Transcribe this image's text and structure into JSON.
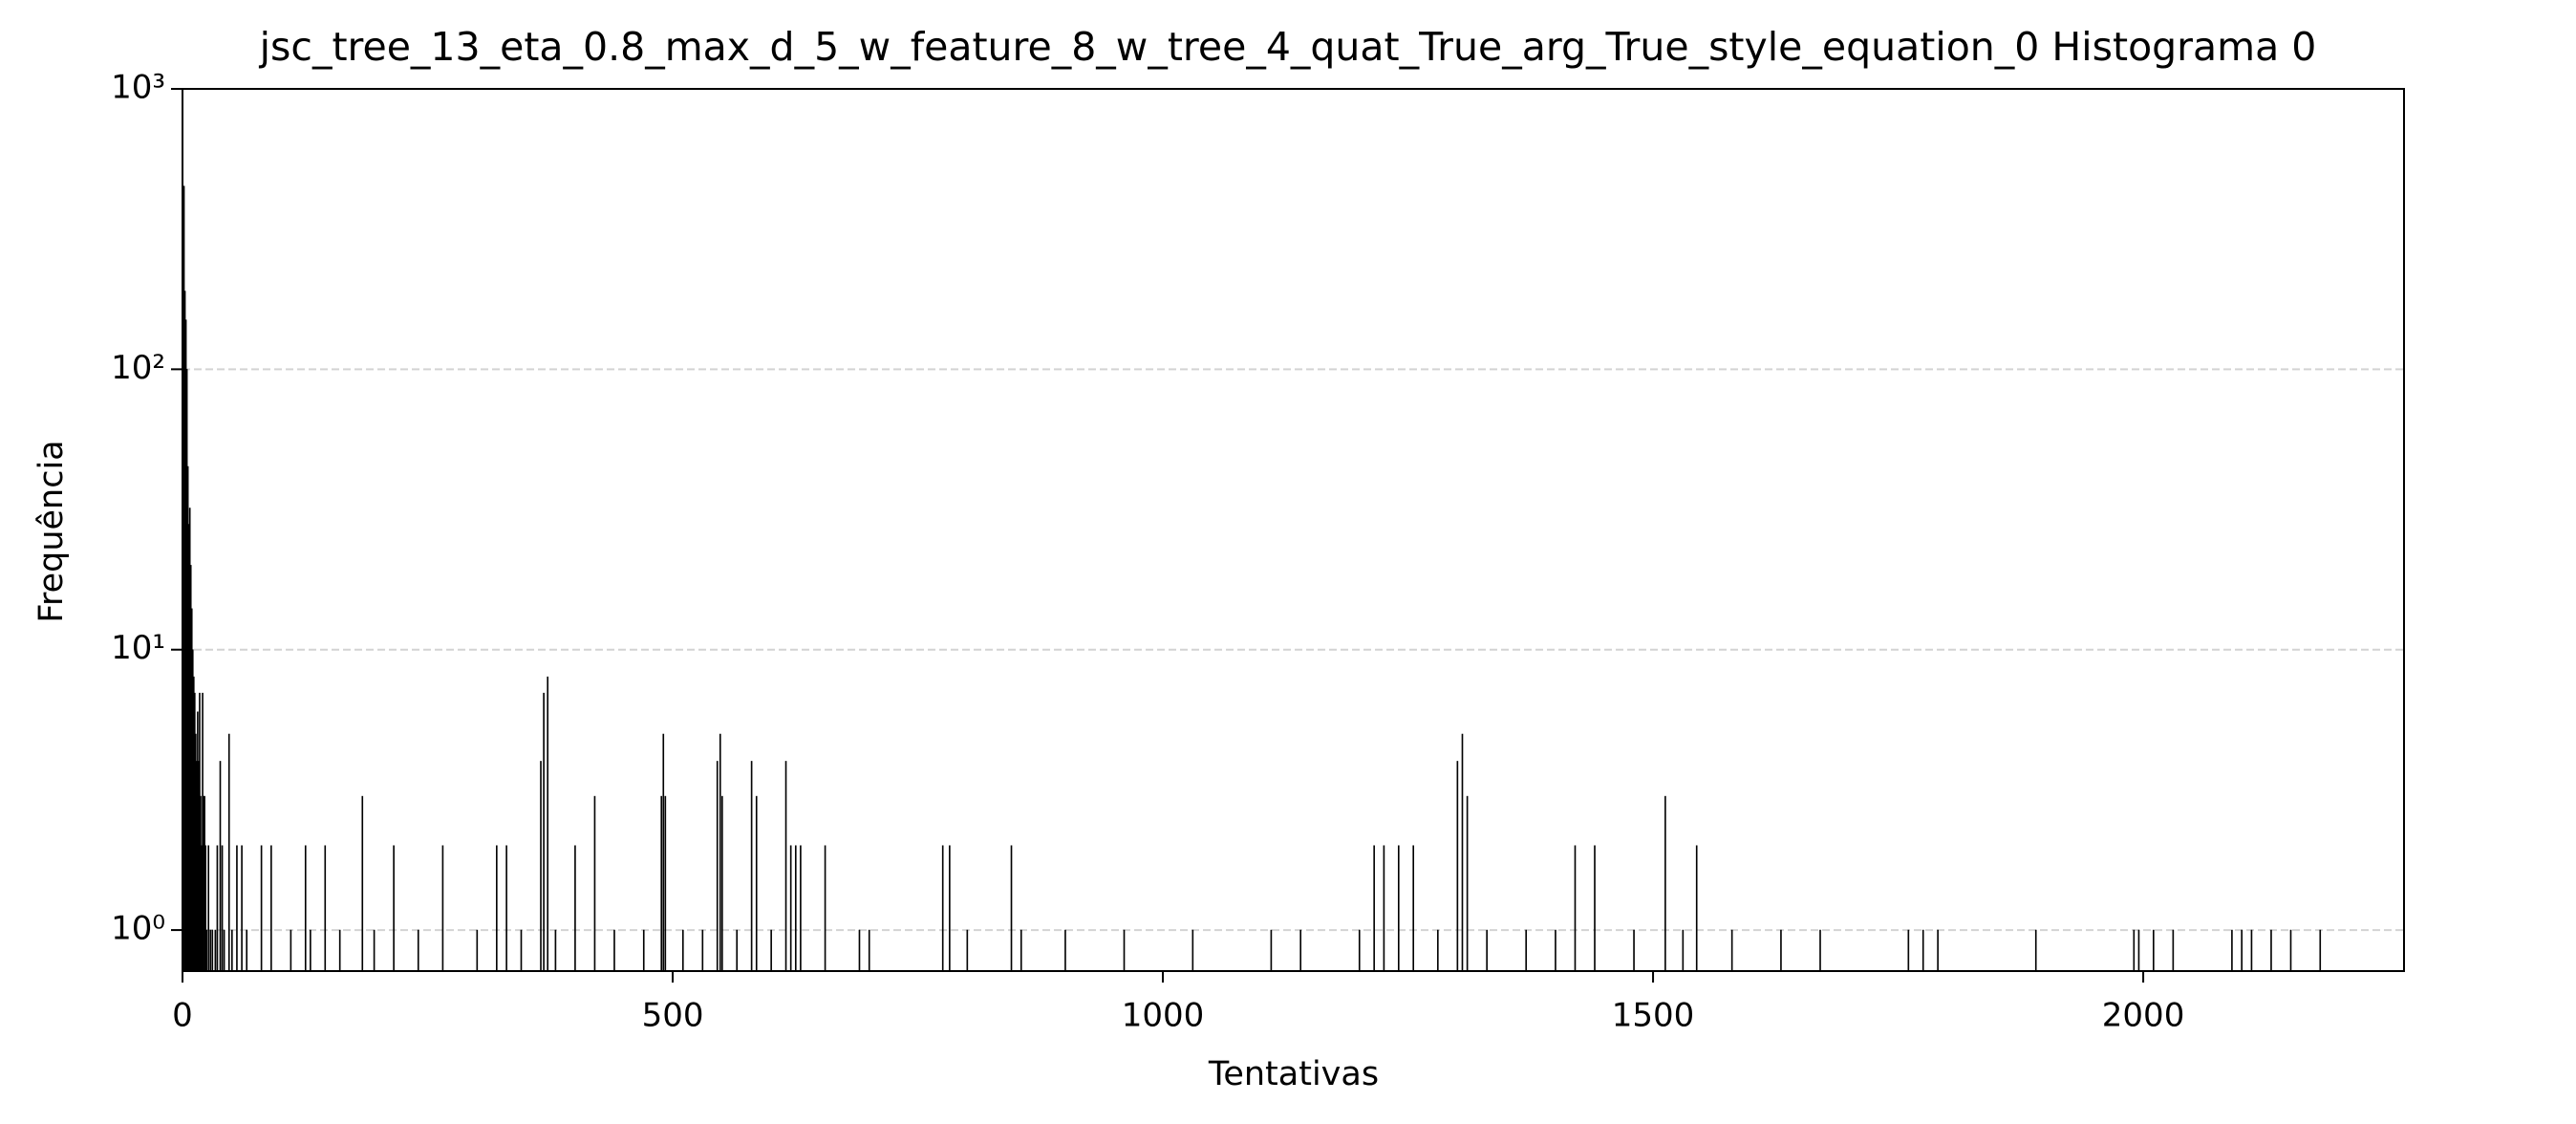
{
  "chart_data": {
    "type": "histogram",
    "title": "jsc_tree_13_eta_0.8_max_d_5_w_feature_8_w_tree_4_quat_True_arg_True_style_equation_0 Histograma 0",
    "xlabel": "Tentativas",
    "ylabel": "Frequência",
    "color": "#000000",
    "log_y": true,
    "grid": "y",
    "xlim": [
      0,
      2266
    ],
    "ylim": [
      0.714,
      1000
    ],
    "xticks": [
      0,
      500,
      1000,
      1500,
      2000
    ],
    "yticks": [
      {
        "value": 1,
        "label": "10⁰"
      },
      {
        "value": 10,
        "label": "10¹"
      },
      {
        "value": 100,
        "label": "10²"
      },
      {
        "value": 1000,
        "label": "10³"
      }
    ],
    "bins": [
      1,
      2,
      3,
      4,
      5,
      6,
      7,
      8,
      9,
      10,
      11,
      12,
      13,
      14,
      15,
      16,
      17,
      18,
      19,
      20,
      21,
      22,
      23,
      24,
      25,
      26,
      27,
      28,
      29,
      30,
      31,
      33,
      34,
      35,
      36,
      38,
      39,
      40,
      41,
      42,
      43,
      47,
      48,
      50,
      51,
      55,
      56,
      60,
      61,
      65,
      66,
      80,
      81,
      90,
      91,
      110,
      111,
      125,
      126,
      130,
      131,
      145,
      146,
      160,
      161,
      183,
      184,
      195,
      196,
      215,
      216,
      240,
      241,
      265,
      266,
      300,
      301,
      320,
      321,
      330,
      331,
      345,
      346,
      365,
      366,
      368,
      369,
      372,
      373,
      380,
      381,
      400,
      401,
      420,
      421,
      440,
      441,
      470,
      471,
      488,
      489,
      490,
      491,
      492,
      493,
      510,
      511,
      530,
      531,
      545,
      546,
      548,
      549,
      550,
      551,
      565,
      566,
      580,
      581,
      585,
      586,
      600,
      601,
      615,
      616,
      620,
      621,
      625,
      626,
      630,
      631,
      655,
      656,
      690,
      691,
      700,
      701,
      775,
      776,
      782,
      783,
      800,
      801,
      845,
      846,
      855,
      856,
      900,
      901,
      960,
      961,
      1030,
      1031,
      1110,
      1111,
      1140,
      1141,
      1200,
      1201,
      1215,
      1216,
      1225,
      1226,
      1240,
      1241,
      1255,
      1256,
      1280,
      1281,
      1300,
      1301,
      1305,
      1306,
      1310,
      1311,
      1330,
      1331,
      1370,
      1371,
      1400,
      1401,
      1420,
      1421,
      1440,
      1441,
      1480,
      1481,
      1512,
      1513,
      1530,
      1531,
      1544,
      1545,
      1580,
      1581,
      1630,
      1631,
      1670,
      1671,
      1760,
      1761,
      1775,
      1776,
      1790,
      1791,
      1890,
      1891,
      1990,
      1991,
      1995,
      1996,
      2010,
      2011,
      2030,
      2031,
      2090,
      2091,
      2100,
      2101,
      2110,
      2111,
      2130,
      2131,
      2150,
      2151,
      2180,
      2181
    ],
    "counts": [
      450,
      190,
      150,
      100,
      45,
      28,
      32,
      20,
      14,
      10,
      8,
      7,
      5,
      4,
      6,
      4,
      7,
      3,
      2,
      7,
      3,
      3,
      2,
      1,
      null,
      2,
      null,
      1,
      null,
      1,
      null,
      1,
      null,
      2,
      null,
      4,
      null,
      2,
      null,
      1,
      null,
      5,
      null,
      1,
      null,
      2,
      null,
      2,
      null,
      1,
      null,
      2,
      null,
      2,
      null,
      1,
      null,
      2,
      null,
      1,
      null,
      2,
      null,
      1,
      null,
      3,
      null,
      1,
      null,
      2,
      null,
      1,
      null,
      2,
      null,
      1,
      null,
      2,
      null,
      2,
      null,
      1,
      null,
      4,
      null,
      7,
      null,
      8,
      null,
      1,
      null,
      2,
      null,
      3,
      null,
      1,
      null,
      1,
      null,
      3,
      null,
      5,
      null,
      3,
      null,
      1,
      null,
      1,
      null,
      4,
      null,
      5,
      null,
      3,
      null,
      1,
      null,
      4,
      null,
      3,
      null,
      1,
      null,
      4,
      null,
      2,
      null,
      2,
      null,
      2,
      null,
      2,
      null,
      1,
      null,
      1,
      null,
      2,
      null,
      2,
      null,
      1,
      null,
      2,
      null,
      1,
      null,
      1,
      null,
      1,
      null,
      1,
      null,
      1,
      null,
      1,
      null,
      1,
      null,
      2,
      null,
      2,
      null,
      2,
      null,
      2,
      null,
      1,
      null,
      4,
      null,
      5,
      null,
      3,
      null,
      1,
      null,
      1,
      null,
      1,
      null,
      2,
      null,
      2,
      null,
      1,
      null,
      3,
      null,
      1,
      null,
      2,
      null,
      1,
      null,
      1,
      null,
      1,
      null,
      1,
      null,
      1,
      null,
      1,
      null,
      1,
      null,
      1,
      null,
      1,
      null,
      1,
      null,
      1,
      null,
      1,
      null,
      1,
      null,
      1,
      null,
      1,
      null,
      1,
      null,
      1
    ]
  }
}
